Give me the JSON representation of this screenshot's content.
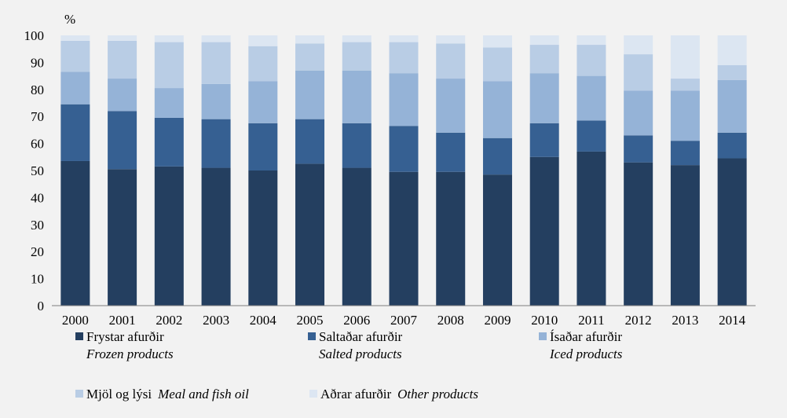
{
  "chart_data": {
    "type": "bar",
    "stacked": true,
    "unit_label": "%",
    "title": "",
    "xlabel": "",
    "ylabel": "",
    "ylim": [
      0,
      100
    ],
    "yticks": [
      0,
      10,
      20,
      30,
      40,
      50,
      60,
      70,
      80,
      90,
      100
    ],
    "grid": false,
    "legend_position": "bottom",
    "categories": [
      "2000",
      "2001",
      "2002",
      "2003",
      "2004",
      "2005",
      "2006",
      "2007",
      "2008",
      "2009",
      "2010",
      "2011",
      "2012",
      "2013",
      "2014"
    ],
    "series": [
      {
        "name": "Frystar afurðir",
        "name_en": "Frozen products",
        "color": "#243f60",
        "values": [
          53.5,
          50.5,
          51.5,
          51,
          50,
          52.5,
          51,
          49.5,
          49.5,
          48.5,
          55,
          57,
          53,
          52,
          54.5
        ]
      },
      {
        "name": "Saltaðar afurðir",
        "name_en": "Salted products",
        "color": "#366092",
        "values": [
          21,
          21.5,
          18,
          18,
          17.5,
          16.5,
          16.5,
          17,
          14.5,
          13.5,
          12.5,
          11.5,
          10,
          9,
          9.5
        ]
      },
      {
        "name": "Ísaðar afurðir",
        "name_en": "Iced products",
        "color": "#95b3d7",
        "values": [
          12,
          12,
          11,
          13,
          15.5,
          18,
          19.5,
          19.5,
          20,
          21,
          18.5,
          16.5,
          16.5,
          18.5,
          19.5
        ]
      },
      {
        "name": "Mjöl og lýsi",
        "name_en": "Meal and fish oil",
        "color": "#b9cde5",
        "values": [
          11.5,
          14,
          17,
          15.5,
          13,
          10,
          10.5,
          11.5,
          13,
          12.5,
          10.5,
          11.5,
          13.5,
          4.5,
          5.5
        ]
      },
      {
        "name": "Aðrar afurðir",
        "name_en": "Other products",
        "color": "#dce6f2",
        "values": [
          2,
          2,
          2.5,
          2.5,
          4,
          3,
          2.5,
          2.5,
          3,
          4.5,
          3.5,
          3.5,
          7,
          16,
          11
        ]
      }
    ]
  }
}
